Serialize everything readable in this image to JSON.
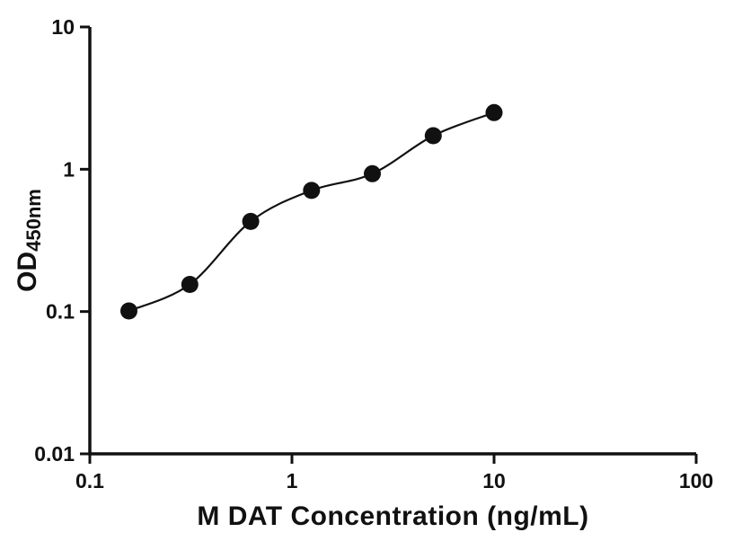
{
  "chart_data": {
    "type": "scatter",
    "subtype": "log-log standard curve with fitted line",
    "x": [
      0.156,
      0.3125,
      0.625,
      1.25,
      2.5,
      5,
      10
    ],
    "y": [
      0.101,
      0.155,
      0.43,
      0.71,
      0.93,
      1.72,
      2.5
    ],
    "xlabel": "M DAT Concentration (ng/mL)",
    "ylabel_main": "OD",
    "ylabel_sub": "450nm",
    "xlim": [
      0.1,
      100
    ],
    "ylim": [
      0.01,
      10
    ],
    "xscale": "log",
    "yscale": "log",
    "x_ticks": [
      0.1,
      1,
      10,
      100
    ],
    "y_ticks": [
      0.01,
      0.1,
      1,
      10
    ],
    "x_tick_labels": [
      "0.1",
      "1",
      "10",
      "100"
    ],
    "y_tick_labels": [
      "0.01",
      "0.1",
      "1",
      "10"
    ],
    "grid": false,
    "legend": false,
    "marker_color": "#111111",
    "line_color": "#111111",
    "axis_color": "#111111",
    "background": "#ffffff"
  }
}
